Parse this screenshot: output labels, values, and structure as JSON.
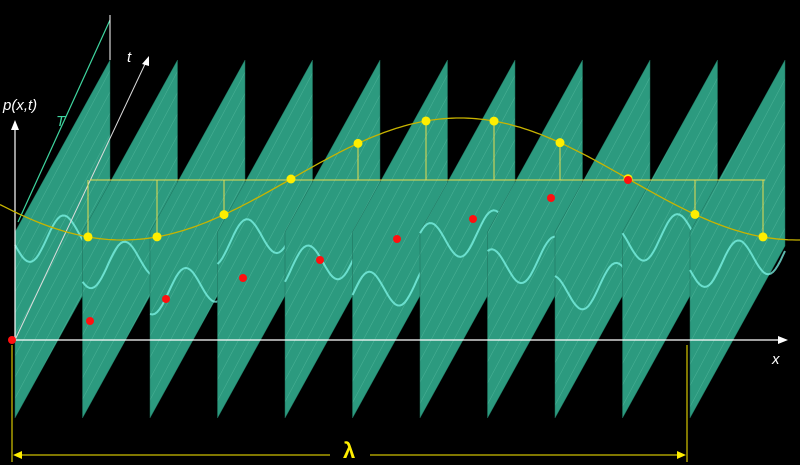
{
  "labels": {
    "pressure": "p(x,t)",
    "period": "T",
    "time": "t",
    "position": "x",
    "wavelength": "λ"
  }
}
